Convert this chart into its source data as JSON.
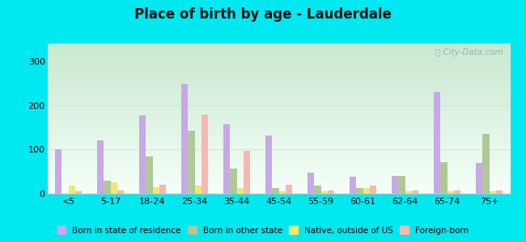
{
  "title": "Place of birth by age - Lauderdale",
  "categories": [
    "<5",
    "5-17",
    "18-24",
    "25-34",
    "35-44",
    "45-54",
    "55-59",
    "60-61",
    "62-64",
    "65-74",
    "75+"
  ],
  "series": {
    "Born in state of residence": [
      100,
      120,
      178,
      248,
      157,
      132,
      47,
      38,
      40,
      230,
      70
    ],
    "Born in other state": [
      0,
      30,
      85,
      143,
      57,
      12,
      18,
      12,
      40,
      72,
      135
    ],
    "Native, outside of US": [
      18,
      25,
      15,
      18,
      12,
      5,
      5,
      12,
      5,
      5,
      5
    ],
    "Foreign-born": [
      5,
      8,
      20,
      180,
      97,
      20,
      8,
      18,
      8,
      8,
      8
    ]
  },
  "colors": {
    "Born in state of residence": "#c8a8e8",
    "Born in other state": "#b0c898",
    "Native, outside of US": "#f0e870",
    "Foreign-born": "#f8b8b0"
  },
  "ylim": [
    0,
    340
  ],
  "yticks": [
    0,
    100,
    200,
    300
  ],
  "outer_bg": "#00e8f0",
  "plot_bg_topleft": "#c8e8d0",
  "plot_bg_bottomright": "#f5fff8",
  "watermark": "ⓘ City-Data.com"
}
